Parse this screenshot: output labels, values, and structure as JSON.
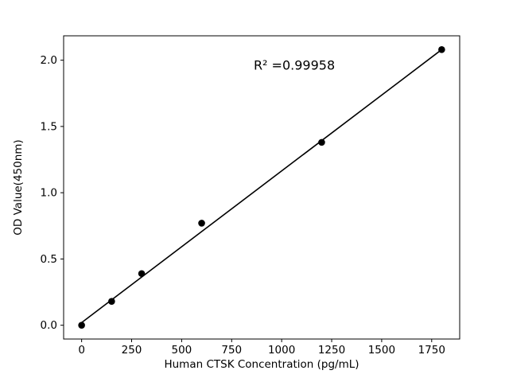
{
  "figure": {
    "background": "#ffffff"
  },
  "chart_data": {
    "type": "scatter",
    "title": "",
    "xlabel": "Human CTSK Concentration (pg/mL)",
    "ylabel": "OD Value(450nm)",
    "x": [
      0,
      150,
      300,
      600,
      1200,
      1800
    ],
    "y": [
      0.0,
      0.18,
      0.39,
      0.77,
      1.38,
      2.08
    ],
    "trendline": {
      "x": [
        0,
        1800
      ],
      "y": [
        0.02,
        2.08
      ]
    },
    "xticks": [
      0,
      250,
      500,
      750,
      1000,
      1250,
      1500,
      1750
    ],
    "xtick_labels": [
      "0",
      "250",
      "500",
      "750",
      "1000",
      "1250",
      "1500",
      "1750"
    ],
    "yticks": [
      0.0,
      0.5,
      1.0,
      1.5,
      2.0
    ],
    "ytick_labels": [
      "0.0",
      "0.5",
      "1.0",
      "1.5",
      "2.0"
    ],
    "xlim": [
      -90,
      1890
    ],
    "ylim": [
      -0.104,
      2.184
    ],
    "annotation": {
      "text": "R² =0.99958",
      "x": 860,
      "y": 1.93
    },
    "marker_color": "#000000",
    "line_color": "#000000",
    "grid": false,
    "legend": "none"
  }
}
